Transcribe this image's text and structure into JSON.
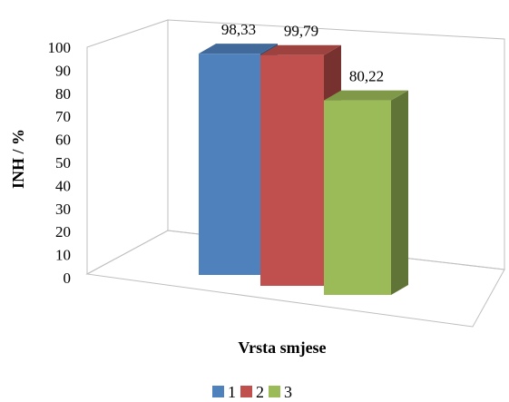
{
  "chart_data": {
    "type": "bar",
    "projection": "3d",
    "categories": [
      "1",
      "2",
      "3"
    ],
    "values": [
      98.33,
      99.79,
      80.22
    ],
    "value_labels": [
      "98,33",
      "99,79",
      "80,22"
    ],
    "colors": [
      "#4f81bd",
      "#c0504d",
      "#9bbb59"
    ],
    "xlabel": "Vrsta smjese",
    "ylabel": "INH / %",
    "ylim": [
      0,
      100
    ],
    "yticks": [
      "0",
      "10",
      "20",
      "30",
      "40",
      "50",
      "60",
      "70",
      "80",
      "90",
      "100"
    ],
    "grid": false,
    "legend": {
      "placement": "bottom",
      "entries": [
        "1",
        "2",
        "3"
      ]
    }
  }
}
